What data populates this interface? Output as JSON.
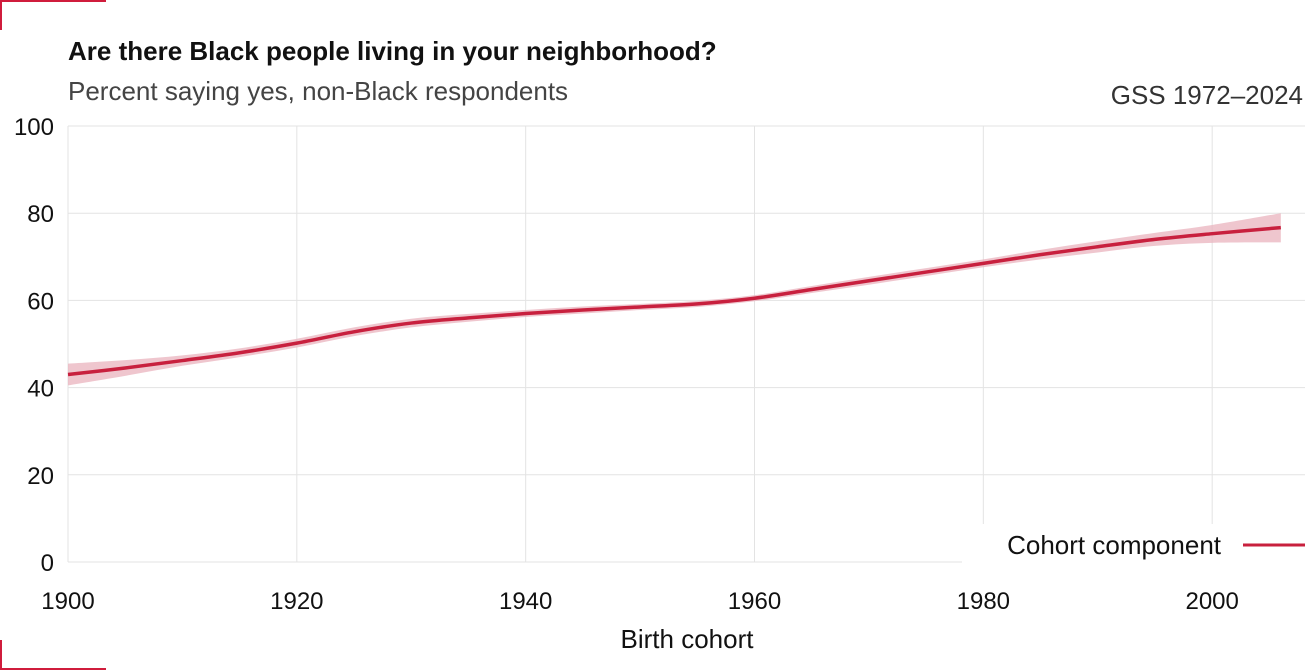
{
  "header": {
    "title": "Are there Black people living in your neighborhood?",
    "subtitle": "Percent saying yes, non-Black respondents",
    "source": "GSS 1972–2024"
  },
  "colors": {
    "line": "#c8203e",
    "band": "#e9b3bd",
    "grid": "#e3e3e3",
    "accent": "#d01c3c"
  },
  "chart_data": {
    "type": "line",
    "title": "Are there Black people living in your neighborhood?",
    "subtitle": "Percent saying yes, non-Black respondents",
    "xlabel": "Birth cohort",
    "ylabel": "",
    "xlim": [
      1900,
      2008
    ],
    "ylim": [
      0,
      100
    ],
    "x_ticks": [
      1900,
      1920,
      1940,
      1960,
      1980,
      2000
    ],
    "y_ticks": [
      0,
      20,
      40,
      60,
      80,
      100
    ],
    "grid": true,
    "legend_position": "bottom-right",
    "series": [
      {
        "name": "Cohort component",
        "x": [
          1900,
          1905,
          1910,
          1915,
          1920,
          1925,
          1930,
          1935,
          1940,
          1945,
          1950,
          1955,
          1960,
          1965,
          1970,
          1975,
          1980,
          1985,
          1990,
          1995,
          2000,
          2006
        ],
        "y": [
          43,
          44.5,
          46.2,
          48.0,
          50.2,
          52.8,
          54.8,
          56.0,
          57.0,
          57.8,
          58.5,
          59.2,
          60.5,
          62.5,
          64.5,
          66.5,
          68.5,
          70.5,
          72.3,
          74.0,
          75.3,
          76.7
        ],
        "lower": [
          40.5,
          42.7,
          45.0,
          47.0,
          49.2,
          51.8,
          53.8,
          55.1,
          56.2,
          57.0,
          57.8,
          58.5,
          59.8,
          61.7,
          63.6,
          65.6,
          67.6,
          69.4,
          71.0,
          72.5,
          73.2,
          73.3
        ],
        "upper": [
          45.5,
          46.3,
          47.4,
          49.0,
          51.2,
          53.8,
          55.8,
          56.9,
          57.8,
          58.6,
          59.2,
          59.9,
          61.2,
          63.3,
          65.4,
          67.4,
          69.4,
          71.6,
          73.6,
          75.5,
          77.3,
          80.0
        ]
      }
    ]
  }
}
